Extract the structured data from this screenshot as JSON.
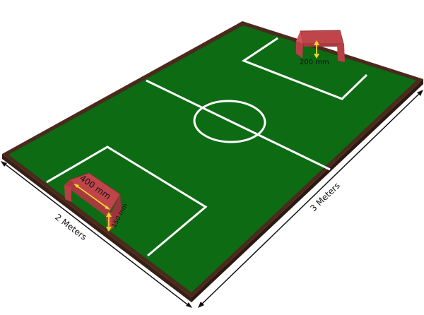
{
  "labels": {
    "goal_width": "400 mm",
    "goal_height": "150 mm",
    "goal_depth": "200 mm",
    "field_width": "2 Meters",
    "field_length": "3 Meters"
  },
  "colors": {
    "field": "#0d6b14",
    "field_dark": "#0a5a10",
    "border": "#4a2a1c",
    "lines": "#ffffff",
    "goal": "#c0454a",
    "goal_dark": "#8f2f33",
    "arrow": "#f2d22e"
  }
}
